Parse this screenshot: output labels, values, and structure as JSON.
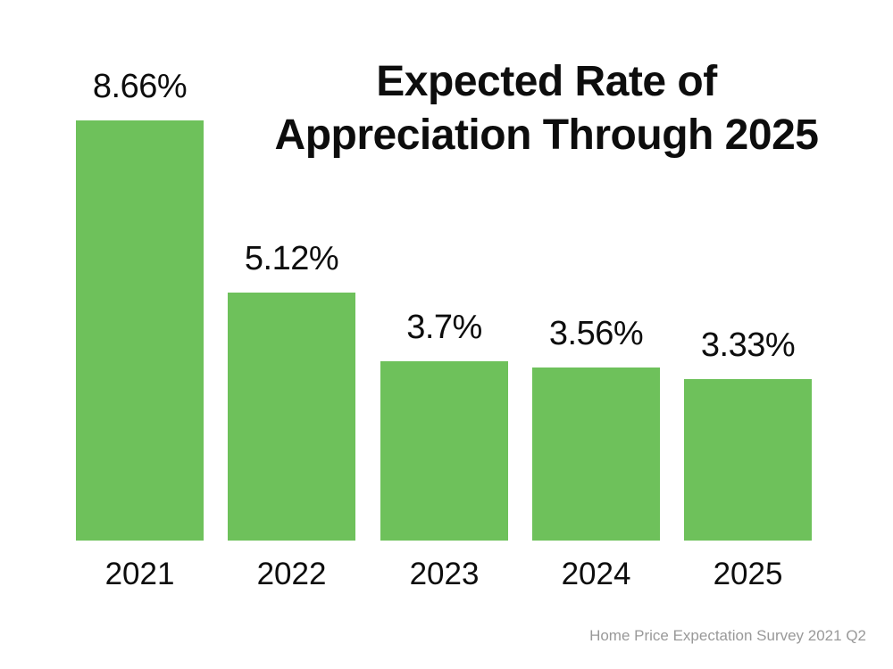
{
  "chart_data": {
    "type": "bar",
    "title": "Expected Rate of Appreciation Through 2025",
    "title_lines": [
      "Expected Rate of",
      "Appreciation Through 2025"
    ],
    "categories": [
      "2021",
      "2022",
      "2023",
      "2024",
      "2025"
    ],
    "values": [
      8.66,
      5.12,
      3.7,
      3.56,
      3.33
    ],
    "value_labels": [
      "8.66%",
      "5.12%",
      "3.7%",
      "3.56%",
      "3.33%"
    ],
    "xlabel": "",
    "ylabel": "",
    "ylim": [
      0,
      9
    ],
    "grid": false,
    "legend": false,
    "axes_visible": false,
    "bar_color": "#6EC15B",
    "text_color": "#0d0d0d",
    "source_note": "Home Price Expectation Survey 2021 Q2",
    "source_color": "#999999",
    "background_color": "#ffffff"
  }
}
